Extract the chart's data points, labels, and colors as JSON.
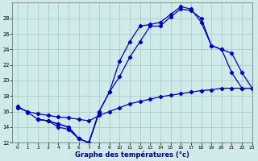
{
  "title": "Graphe des températures (°c)",
  "background_color": "#d0eaea",
  "grid_color": "#a0c8c8",
  "line_color": "#0000bb",
  "ylim": [
    12,
    30
  ],
  "xlim": [
    -0.5,
    23
  ],
  "yticks": [
    12,
    14,
    16,
    18,
    20,
    22,
    24,
    26,
    28
  ],
  "xticks": [
    0,
    1,
    2,
    3,
    4,
    5,
    6,
    7,
    8,
    9,
    10,
    11,
    12,
    13,
    14,
    15,
    16,
    17,
    18,
    19,
    20,
    21,
    22,
    23
  ],
  "series": {
    "s0_x": [
      0,
      1,
      2,
      3,
      4,
      5,
      6,
      7,
      8
    ],
    "s0_y": [
      16.7,
      15.9,
      15.0,
      14.8,
      14.0,
      13.7,
      12.5,
      12.0,
      15.9
    ],
    "s1_x": [
      2,
      3,
      4,
      5,
      6,
      7,
      8,
      9,
      10,
      11,
      12,
      13,
      14,
      15,
      16,
      17,
      18,
      19,
      20,
      21,
      22,
      23
    ],
    "s1_y": [
      15.0,
      14.8,
      14.4,
      14.0,
      12.5,
      12.0,
      16.0,
      18.5,
      20.5,
      23.0,
      25.0,
      27.0,
      27.0,
      28.2,
      29.2,
      29.0,
      28.0,
      24.5,
      24.0,
      21.0,
      19.0,
      19.0
    ],
    "s2_x": [
      2,
      3,
      4,
      5,
      6,
      7,
      8,
      9,
      10,
      11,
      12,
      13,
      14,
      15,
      16,
      17,
      18,
      19,
      20,
      21,
      22,
      23
    ],
    "s2_y": [
      15.0,
      14.8,
      14.4,
      14.0,
      12.5,
      12.0,
      16.0,
      18.5,
      22.5,
      25.0,
      27.0,
      27.2,
      27.5,
      28.5,
      29.5,
      29.2,
      27.5,
      24.5,
      24.0,
      23.5,
      21.0,
      19.0
    ],
    "s3_x": [
      0,
      1,
      2,
      3,
      4,
      5,
      6,
      7,
      8,
      9,
      10,
      11,
      12,
      13,
      14,
      15,
      16,
      17,
      18,
      19,
      20,
      21,
      22,
      23
    ],
    "s3_y": [
      16.5,
      16.0,
      15.7,
      15.5,
      15.3,
      15.2,
      15.0,
      14.8,
      15.5,
      16.0,
      16.5,
      17.0,
      17.3,
      17.6,
      17.9,
      18.1,
      18.3,
      18.5,
      18.7,
      18.8,
      19.0,
      19.0,
      19.0,
      19.0
    ]
  }
}
